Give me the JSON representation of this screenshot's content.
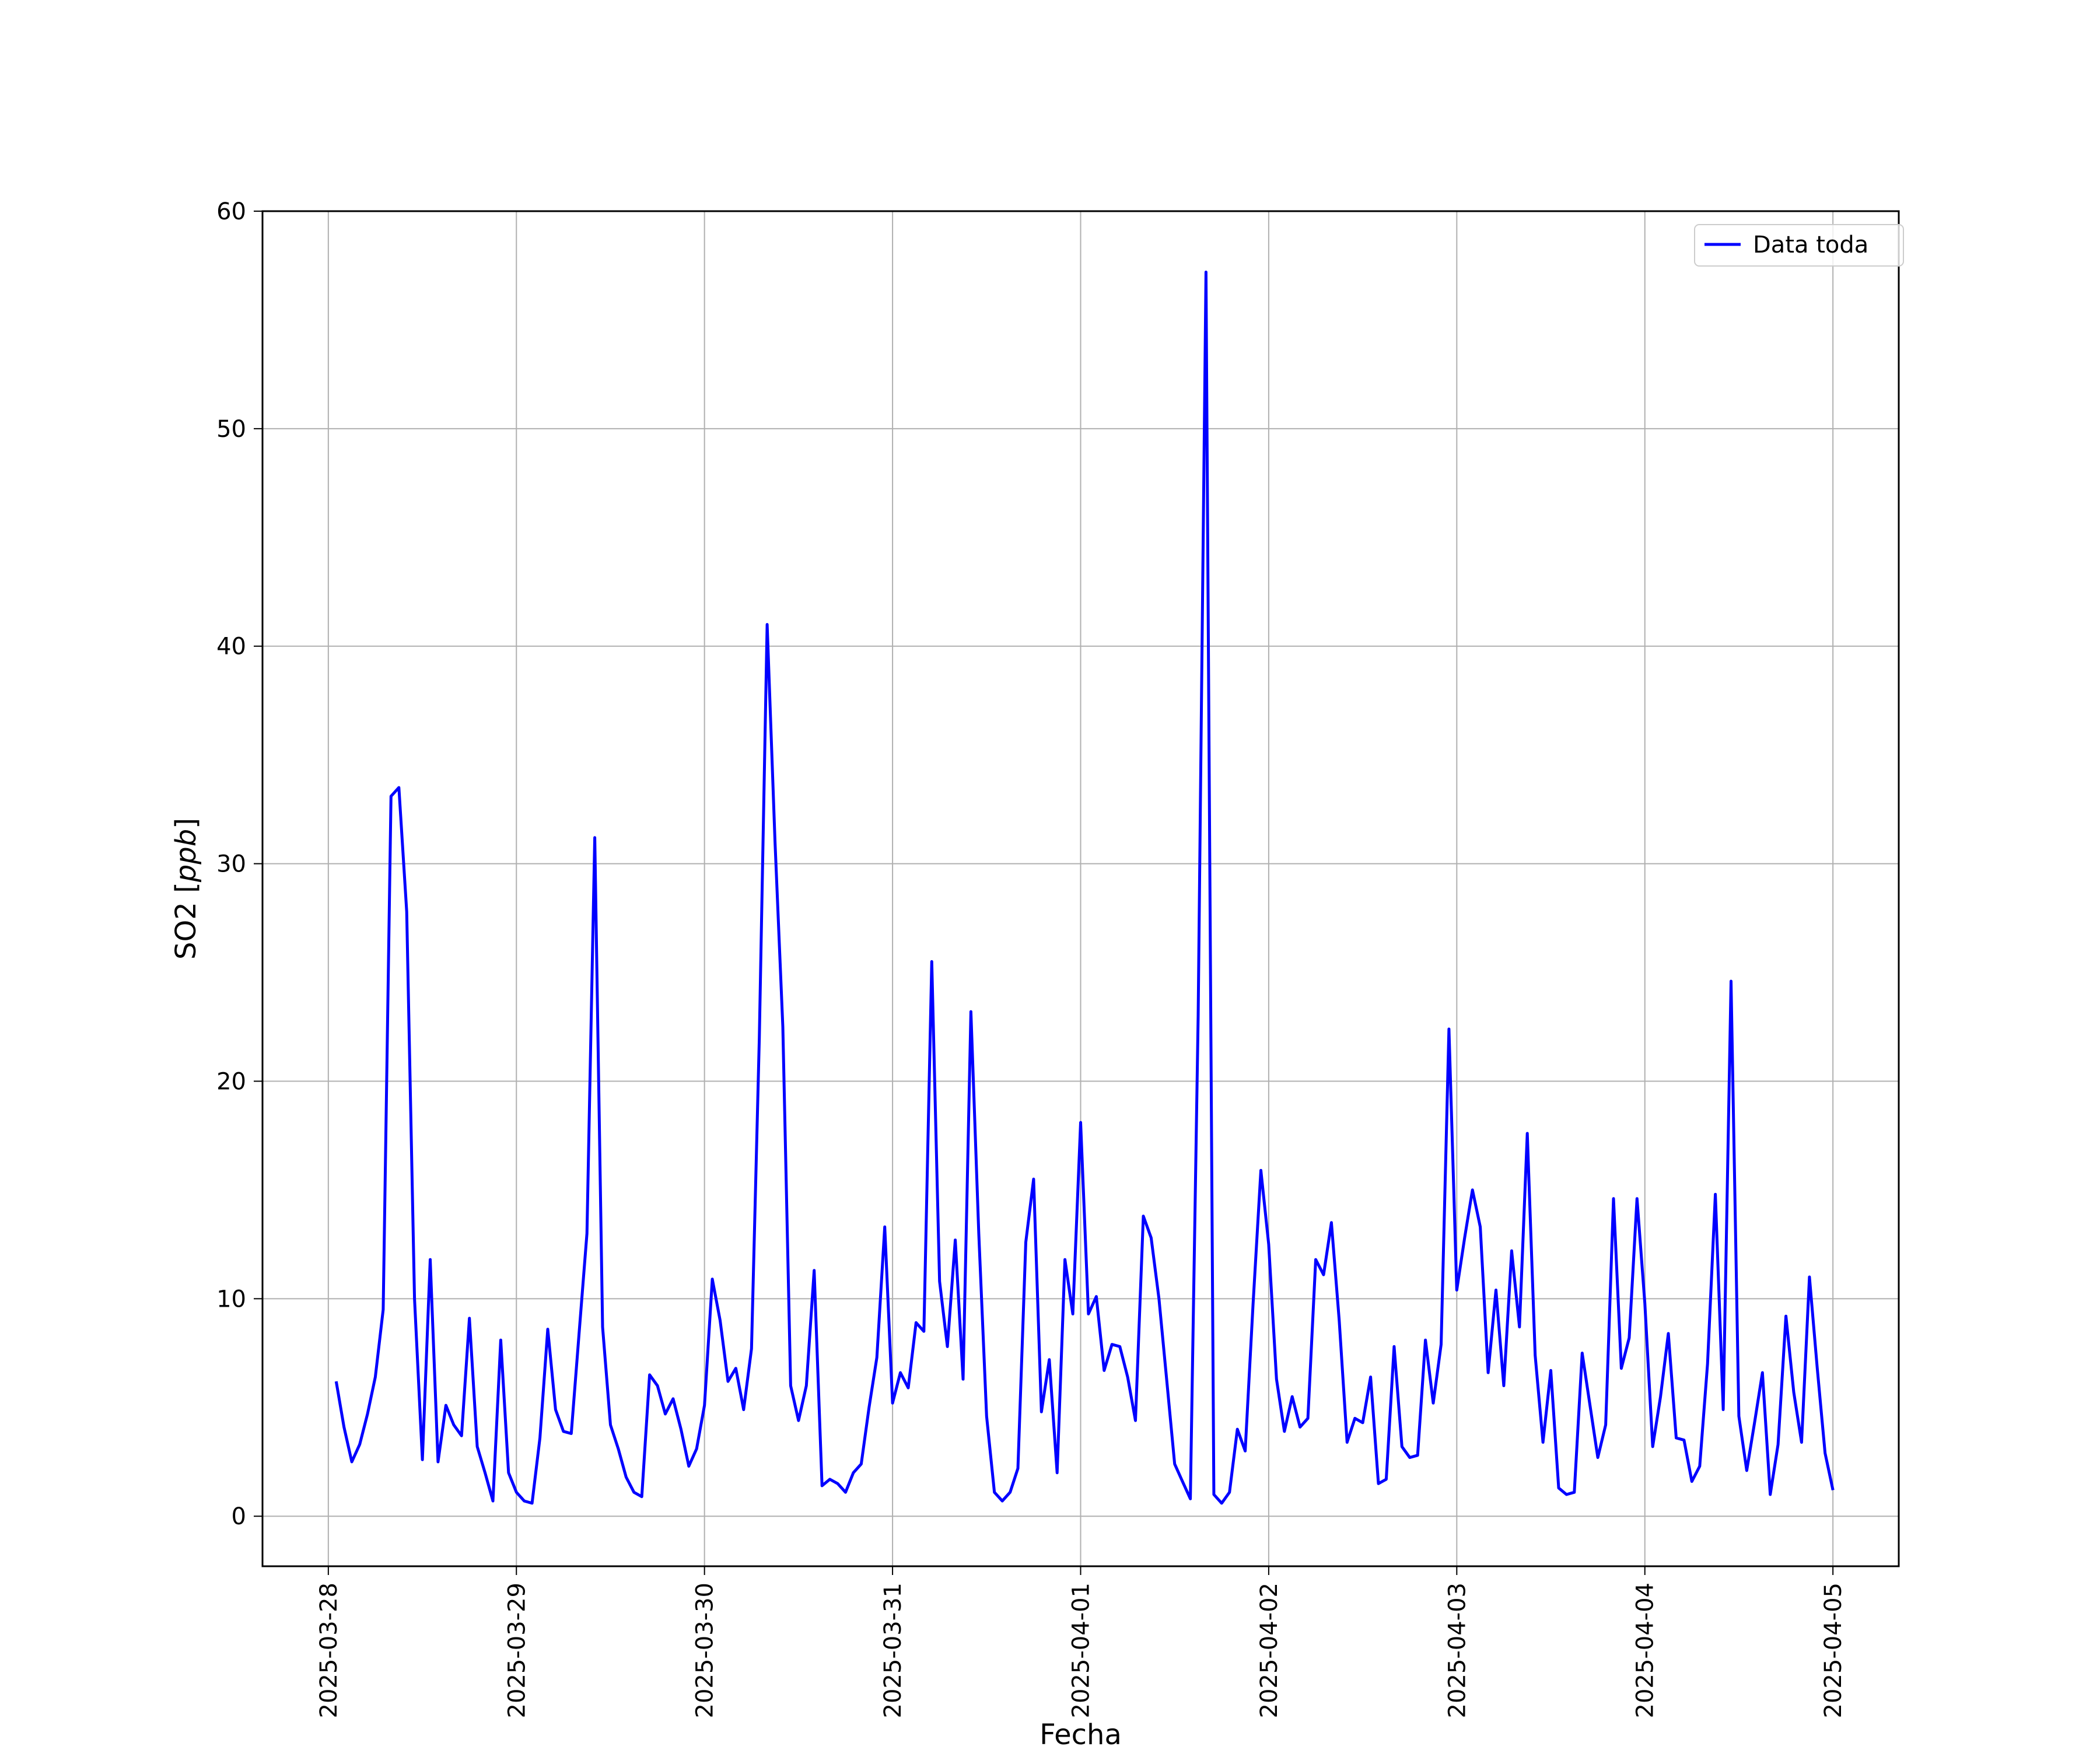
{
  "chart_data": {
    "type": "line",
    "xlabel": "Fecha",
    "ylabel": "SO2 [ppb]",
    "ylabel_parts": {
      "text": "SO2 ",
      "open": "[",
      "unit": "ppb",
      "close": "]"
    },
    "xlim": [
      "2025-03-27T15:36",
      "2025-04-05T08:24"
    ],
    "ylim": [
      -2.3,
      60
    ],
    "grid": true,
    "legend": "top-right",
    "x_ticks": [
      "2025-03-28",
      "2025-03-29",
      "2025-03-30",
      "2025-03-31",
      "2025-04-01",
      "2025-04-02",
      "2025-04-03",
      "2025-04-04",
      "2025-04-05"
    ],
    "y_ticks": [
      "0",
      "10",
      "20",
      "30",
      "40",
      "50",
      "60"
    ],
    "series": [
      {
        "name": "Data toda",
        "color": "#0000ff",
        "x_start": "2025-03-28T01:00",
        "x_step_hours": 1,
        "values": [
          6.2,
          4.1,
          2.5,
          3.3,
          4.7,
          6.4,
          9.5,
          33.1,
          33.5,
          27.8,
          10.0,
          2.6,
          11.8,
          2.5,
          5.1,
          4.2,
          3.7,
          9.1,
          3.2,
          2.0,
          0.7,
          8.1,
          2.0,
          1.1,
          0.7,
          0.6,
          3.6,
          8.6,
          4.9,
          3.9,
          3.8,
          8.4,
          13.0,
          31.2,
          8.7,
          4.2,
          3.1,
          1.8,
          1.1,
          0.9,
          6.5,
          6.0,
          4.7,
          5.4,
          4.0,
          2.3,
          3.1,
          5.1,
          10.9,
          9.0,
          6.2,
          6.8,
          4.9,
          7.7,
          22.0,
          41.0,
          31.0,
          22.5,
          6.0,
          4.4,
          6.0,
          11.3,
          1.4,
          1.7,
          1.5,
          1.1,
          2.0,
          2.4,
          5.0,
          7.3,
          13.3,
          5.2,
          6.6,
          5.9,
          8.9,
          8.5,
          25.5,
          10.8,
          7.8,
          12.7,
          6.3,
          23.2,
          13.0,
          4.6,
          1.1,
          0.7,
          1.1,
          2.2,
          12.6,
          15.5,
          4.8,
          7.2,
          2.0,
          11.8,
          9.3,
          18.1,
          9.3,
          10.1,
          6.7,
          7.9,
          7.8,
          6.4,
          4.4,
          13.8,
          12.8,
          10.0,
          6.2,
          2.4,
          1.6,
          0.8,
          23.0,
          57.2,
          1.0,
          0.6,
          1.1,
          4.0,
          3.0,
          9.7,
          15.9,
          12.5,
          6.3,
          3.9,
          5.5,
          4.1,
          4.5,
          11.8,
          11.1,
          13.5,
          9.0,
          3.4,
          4.5,
          4.3,
          6.4,
          1.5,
          1.7,
          7.8,
          3.2,
          2.7,
          2.8,
          8.1,
          5.2,
          7.9,
          22.4,
          10.4,
          12.8,
          15.0,
          13.3,
          6.6,
          10.4,
          6.0,
          12.2,
          8.7,
          17.6,
          7.4,
          3.4,
          6.7,
          1.3,
          1.0,
          1.1,
          7.5,
          5.1,
          2.7,
          4.2,
          14.6,
          6.8,
          8.2,
          14.6,
          9.8,
          3.2,
          5.5,
          8.4,
          3.6,
          3.5,
          1.6,
          2.3,
          7.0,
          14.8,
          4.9,
          24.6,
          4.6,
          2.1,
          4.3,
          6.6,
          1.0,
          3.3,
          9.2,
          5.7,
          3.4,
          11.0,
          6.8,
          2.9,
          1.2
        ]
      }
    ]
  }
}
